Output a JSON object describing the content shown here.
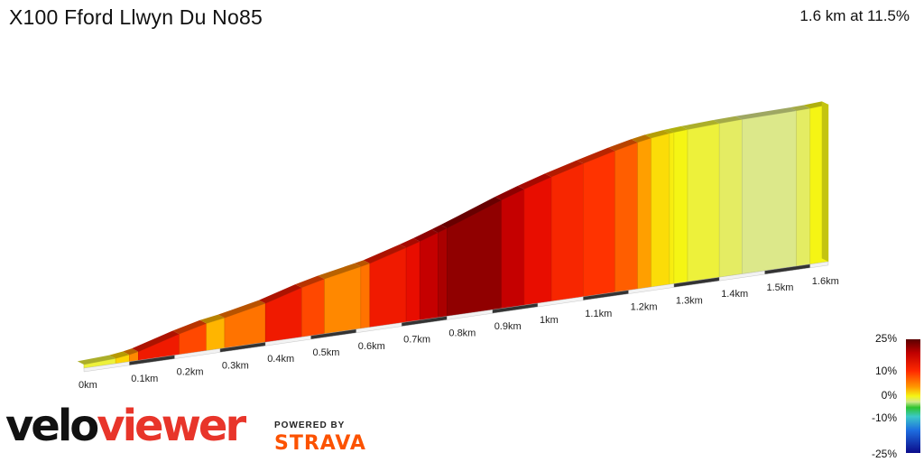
{
  "header": {
    "title": "X100 Fford Llwyn Du No85",
    "summary": "1.6 km at 11.5%"
  },
  "legend": {
    "labels": [
      "25%",
      "10%",
      "0%",
      "-10%",
      "-25%"
    ]
  },
  "branding": {
    "logo_part1": "velo",
    "logo_part2": "viewer",
    "powered_by": "POWERED BY",
    "strava": "STRAVA"
  },
  "chart_data": {
    "type": "area",
    "title": "X100 Fford Llwyn Du No85",
    "xlabel": "",
    "ylabel": "",
    "x_unit": "km",
    "xlim": [
      0,
      1.64
    ],
    "tick_labels": [
      "0km",
      "0.1km",
      "0.2km",
      "0.3km",
      "0.4km",
      "0.5km",
      "0.6km",
      "0.7km",
      "0.8km",
      "0.9km",
      "1km",
      "1.1km",
      "1.2km",
      "1.3km",
      "1.4km",
      "1.5km",
      "1.6km"
    ],
    "distance_km": 1.6,
    "avg_gradient_pct": 11.5,
    "gradient_scale_pct": [
      -25,
      25
    ],
    "segments": [
      {
        "start": 0.0,
        "end": 0.07,
        "gradient": 3
      },
      {
        "start": 0.07,
        "end": 0.1,
        "gradient": 8
      },
      {
        "start": 0.1,
        "end": 0.12,
        "gradient": 12
      },
      {
        "start": 0.12,
        "end": 0.21,
        "gradient": 18
      },
      {
        "start": 0.21,
        "end": 0.27,
        "gradient": 15
      },
      {
        "start": 0.27,
        "end": 0.31,
        "gradient": 10
      },
      {
        "start": 0.31,
        "end": 0.4,
        "gradient": 13
      },
      {
        "start": 0.4,
        "end": 0.48,
        "gradient": 18
      },
      {
        "start": 0.48,
        "end": 0.53,
        "gradient": 15
      },
      {
        "start": 0.53,
        "end": 0.61,
        "gradient": 12
      },
      {
        "start": 0.61,
        "end": 0.63,
        "gradient": 13
      },
      {
        "start": 0.63,
        "end": 0.71,
        "gradient": 18
      },
      {
        "start": 0.71,
        "end": 0.74,
        "gradient": 19
      },
      {
        "start": 0.74,
        "end": 0.78,
        "gradient": 21
      },
      {
        "start": 0.78,
        "end": 0.8,
        "gradient": 22
      },
      {
        "start": 0.8,
        "end": 0.92,
        "gradient": 23
      },
      {
        "start": 0.92,
        "end": 0.97,
        "gradient": 21
      },
      {
        "start": 0.97,
        "end": 1.03,
        "gradient": 19
      },
      {
        "start": 1.03,
        "end": 1.1,
        "gradient": 17
      },
      {
        "start": 1.1,
        "end": 1.17,
        "gradient": 16
      },
      {
        "start": 1.17,
        "end": 1.22,
        "gradient": 14
      },
      {
        "start": 1.22,
        "end": 1.25,
        "gradient": 11
      },
      {
        "start": 1.25,
        "end": 1.29,
        "gradient": 7
      },
      {
        "start": 1.29,
        "end": 1.3,
        "gradient": 5
      },
      {
        "start": 1.3,
        "end": 1.33,
        "gradient": 4
      },
      {
        "start": 1.33,
        "end": 1.4,
        "gradient": 3
      },
      {
        "start": 1.4,
        "end": 1.45,
        "gradient": 2
      },
      {
        "start": 1.45,
        "end": 1.57,
        "gradient": 1
      },
      {
        "start": 1.57,
        "end": 1.6,
        "gradient": 2
      },
      {
        "start": 1.6,
        "end": 1.64,
        "gradient": 4
      }
    ]
  },
  "colors": {
    "accent_red": "#e8352a",
    "strava_orange": "#fc5200",
    "gradient_stops": [
      {
        "pct": -25,
        "color": "#0b0b8a"
      },
      {
        "pct": -10,
        "color": "#1e6ee0"
      },
      {
        "pct": 0,
        "color": "#2ec42e"
      },
      {
        "pct": 1,
        "color": "#dce88a"
      },
      {
        "pct": 4,
        "color": "#f5f514"
      },
      {
        "pct": 9,
        "color": "#ffcc00"
      },
      {
        "pct": 12,
        "color": "#ff8800"
      },
      {
        "pct": 16,
        "color": "#ff3300"
      },
      {
        "pct": 20,
        "color": "#e00000"
      },
      {
        "pct": 25,
        "color": "#5a0000"
      }
    ]
  }
}
